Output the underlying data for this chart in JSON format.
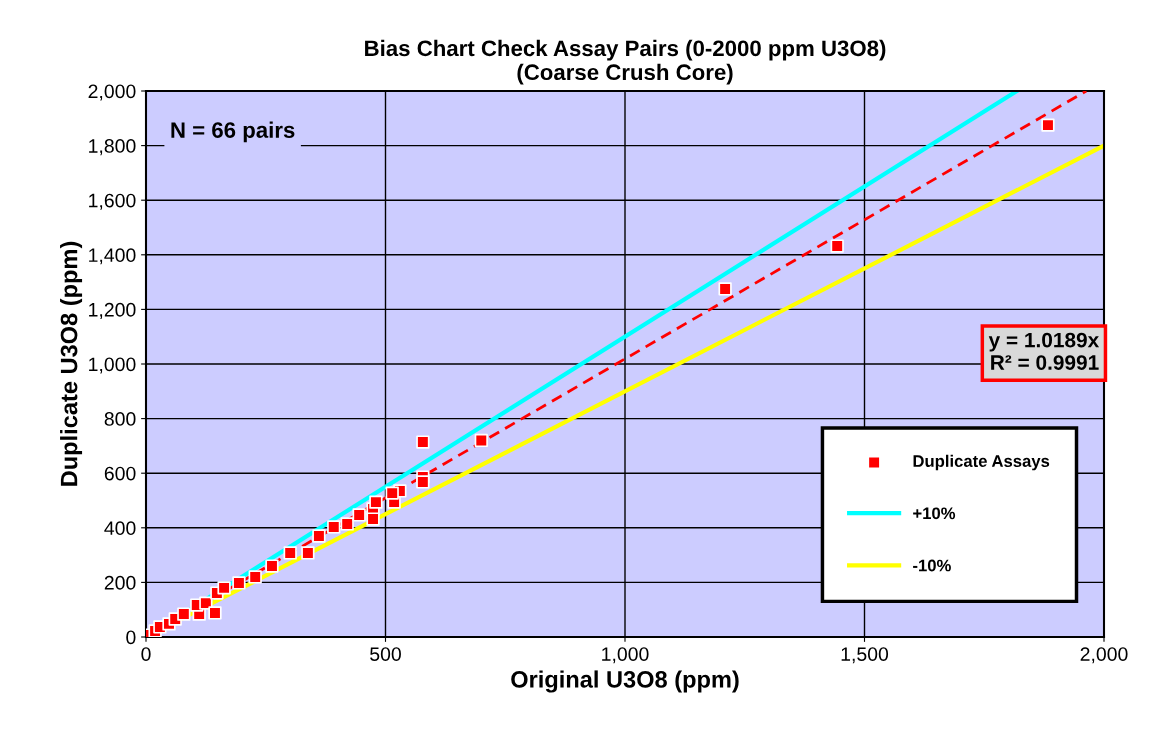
{
  "chart_data": {
    "type": "scatter",
    "title": "Bias Chart Check Assay Pairs (0-2000 ppm U3O8)\n(Coarse Crush Core)",
    "xlabel": "Original U3O8 (ppm)",
    "ylabel": "Duplicate U3O8 (ppm)",
    "xlim": [
      0,
      2000
    ],
    "ylim": [
      0,
      2000
    ],
    "xticks": [
      {
        "value": 0,
        "label": "0"
      },
      {
        "value": 500,
        "label": "500"
      },
      {
        "value": 1000,
        "label": "1,000"
      },
      {
        "value": 1500,
        "label": "1,500"
      },
      {
        "value": 2000,
        "label": "2,000"
      }
    ],
    "yticks": [
      {
        "value": 0,
        "label": "0"
      },
      {
        "value": 200,
        "label": "200"
      },
      {
        "value": 400,
        "label": "400"
      },
      {
        "value": 600,
        "label": "600"
      },
      {
        "value": 800,
        "label": "800"
      },
      {
        "value": 1000,
        "label": "1,000"
      },
      {
        "value": 1200,
        "label": "1,200"
      },
      {
        "value": 1400,
        "label": "1,400"
      },
      {
        "value": 1600,
        "label": "1,600"
      },
      {
        "value": 1800,
        "label": "1,800"
      },
      {
        "value": 2000,
        "label": "2,000"
      }
    ],
    "grid": true,
    "legend": "bottom right",
    "series": [
      {
        "name": "Duplicate Assays",
        "marker": "square",
        "color": "#ff0000",
        "x": [
          4,
          19,
          29,
          48,
          61,
          79,
          111,
          106,
          125,
          144,
          148,
          163,
          194,
          228,
          263,
          301,
          338,
          361,
          392,
          420,
          445,
          474,
          474,
          480,
          518,
          530,
          514,
          578,
          578,
          578,
          700,
          1209,
          1443,
          1883
        ],
        "values": [
          7,
          22,
          37,
          48,
          66,
          84,
          84,
          117,
          124,
          88,
          161,
          180,
          198,
          220,
          260,
          308,
          308,
          370,
          403,
          414,
          447,
          469,
          432,
          494,
          494,
          535,
          527,
          586,
          714,
          568,
          720,
          1275,
          1432,
          1875
        ]
      },
      {
        "name": "+10%",
        "type": "line",
        "line_style": "solid",
        "color": "#00ffff",
        "x": [
          0,
          1818
        ],
        "values": [
          0,
          2000
        ]
      },
      {
        "name": "-10%",
        "type": "line",
        "line_style": "solid",
        "color": "#ffff00",
        "x": [
          0,
          2000
        ],
        "values": [
          0,
          1800
        ]
      },
      {
        "type": "line",
        "line_style": "dashed",
        "color": "#ff0000",
        "x": [
          0,
          1963
        ],
        "values": [
          0,
          2000
        ]
      }
    ],
    "annotations": [
      "N = 66 pairs",
      "y = 1.0189x\nR² = 0.9991"
    ]
  }
}
